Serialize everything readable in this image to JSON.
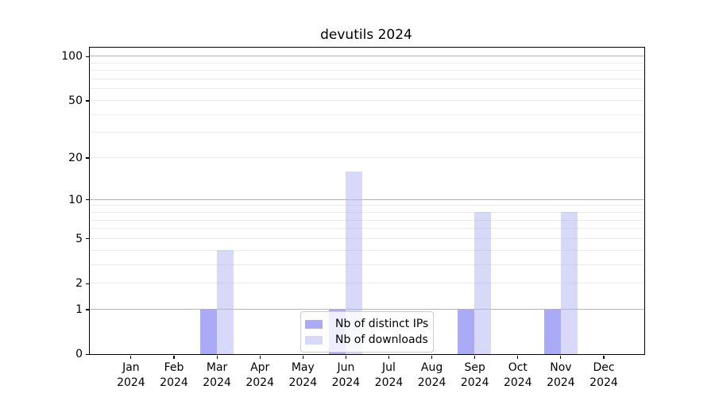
{
  "chart_data": {
    "type": "bar",
    "title": "devutils 2024",
    "categories": [
      "Jan",
      "Feb",
      "Mar",
      "Apr",
      "May",
      "Jun",
      "Jul",
      "Aug",
      "Sep",
      "Oct",
      "Nov",
      "Dec"
    ],
    "year_label": "2024",
    "series": [
      {
        "name": "Nb of distinct IPs",
        "slug": "distinct-ips",
        "color": "#a8a8f8",
        "fill": "rgba(85,85,240,0.5)",
        "values": [
          0,
          0,
          1,
          0,
          0,
          1,
          0,
          0,
          1,
          0,
          1,
          0
        ]
      },
      {
        "name": "Nb of downloads",
        "slug": "downloads",
        "color": "#d8d8f8",
        "fill": "rgba(178,178,242,0.5)",
        "values": [
          0,
          0,
          4,
          0,
          0,
          16,
          0,
          0,
          8,
          0,
          8,
          0
        ]
      }
    ],
    "yscale": "log1p",
    "ylim": [
      0,
      115
    ],
    "y_tick_labels": [
      0,
      1,
      2,
      5,
      10,
      20,
      50,
      100
    ],
    "grid": {
      "major_values": [
        1,
        10,
        100
      ],
      "minor_values": [
        2,
        3,
        4,
        5,
        6,
        7,
        8,
        9,
        20,
        30,
        40,
        50,
        60,
        70,
        80,
        90
      ],
      "major_color": "#b4b4b4",
      "minor_color": "#ebebeb"
    },
    "legend_position": "lower center",
    "axis_color": "#000000"
  }
}
